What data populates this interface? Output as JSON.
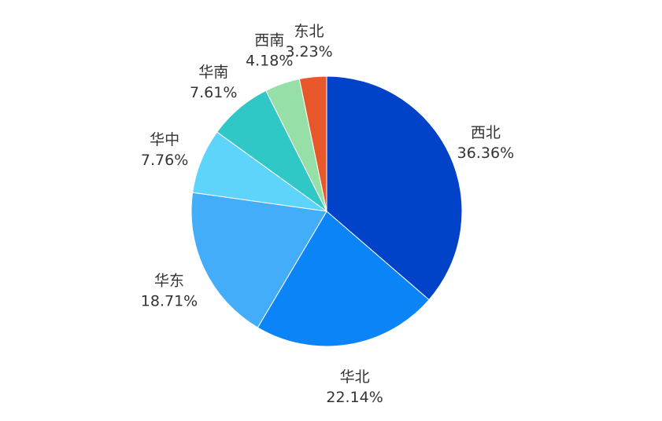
{
  "chart_data": {
    "type": "pie",
    "title": "",
    "slices": [
      {
        "name": "西北",
        "value": 36.36,
        "label": "36.36%",
        "color": "#0042c8"
      },
      {
        "name": "华北",
        "value": 22.14,
        "label": "22.14%",
        "color": "#0a84f6"
      },
      {
        "name": "华东",
        "value": 18.71,
        "label": "18.71%",
        "color": "#43adf9"
      },
      {
        "name": "华中",
        "value": 7.76,
        "label": "7.76%",
        "color": "#5fd4fb"
      },
      {
        "name": "华南",
        "value": 7.61,
        "label": "7.61%",
        "color": "#2fc8c6"
      },
      {
        "name": "西南",
        "value": 4.18,
        "label": "4.18%",
        "color": "#96e0a8"
      },
      {
        "name": "东北",
        "value": 3.23,
        "label": "3.23%",
        "color": "#e8572a"
      }
    ],
    "start_angle": "12 o'clock",
    "direction": "clockwise",
    "legend": "none",
    "data_labels": "outside, name above percentage"
  }
}
